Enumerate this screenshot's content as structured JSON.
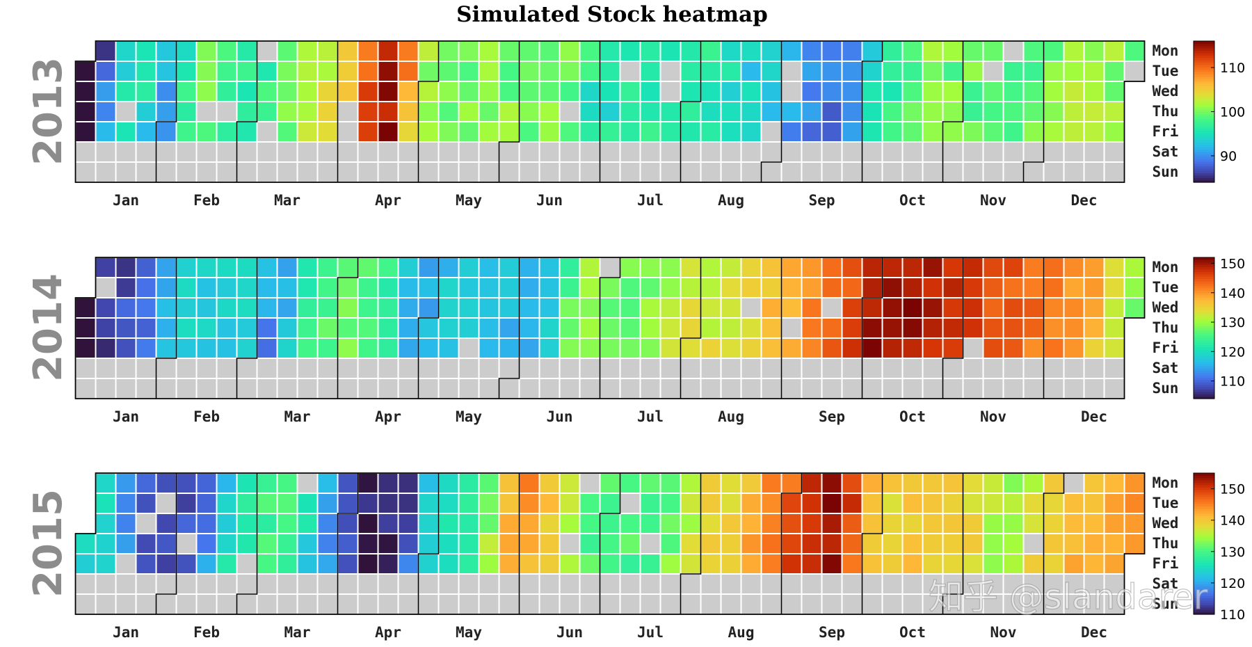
{
  "title": "Simulated Stock heatmap",
  "watermark": "知乎 @slandarer",
  "chart_data": {
    "type": "heatmap",
    "subtype": "calendar",
    "title": "Simulated Stock heatmap",
    "weekdays": [
      "Mon",
      "Tue",
      "Wed",
      "Thu",
      "Fri",
      "Sat",
      "Sun"
    ],
    "months": [
      "Jan",
      "Feb",
      "Mar",
      "Apr",
      "May",
      "Jun",
      "Jul",
      "Aug",
      "Sep",
      "Oct",
      "Nov",
      "Dec"
    ],
    "missing_color": "#cccccc",
    "colormap": "turbo",
    "weekends_missing": true,
    "panels": [
      {
        "year": "2013",
        "clim": [
          84,
          116
        ],
        "colorbar_ticks": [
          90,
          100,
          110
        ],
        "anchors": [
          [
            1,
            80
          ],
          [
            6,
            85
          ],
          [
            10,
            91
          ],
          [
            20,
            98
          ],
          [
            30,
            90
          ],
          [
            40,
            100
          ],
          [
            50,
            98
          ],
          [
            60,
            96
          ],
          [
            75,
            100
          ],
          [
            88,
            103
          ],
          [
            98,
            110
          ],
          [
            105,
            113
          ],
          [
            110,
            115
          ],
          [
            117,
            101
          ],
          [
            130,
            100
          ],
          [
            150,
            100
          ],
          [
            165,
            100
          ],
          [
            180,
            95
          ],
          [
            200,
            96
          ],
          [
            213,
            97
          ],
          [
            235,
            93
          ],
          [
            250,
            90
          ],
          [
            265,
            88
          ],
          [
            276,
            95
          ],
          [
            292,
            100
          ],
          [
            300,
            100
          ],
          [
            320,
            98
          ],
          [
            335,
            100
          ],
          [
            349,
            102
          ],
          [
            365,
            100
          ]
        ]
      },
      {
        "year": "2014",
        "clim": [
          104,
          152
        ],
        "colorbar_ticks": [
          110,
          120,
          130,
          140,
          150
        ],
        "anchors": [
          [
            1,
            98
          ],
          [
            5,
            106
          ],
          [
            14,
            108
          ],
          [
            25,
            112
          ],
          [
            32,
            118
          ],
          [
            45,
            118
          ],
          [
            60,
            118
          ],
          [
            66,
            112
          ],
          [
            80,
            124
          ],
          [
            95,
            128
          ],
          [
            108,
            122
          ],
          [
            115,
            114
          ],
          [
            128,
            118
          ],
          [
            145,
            117
          ],
          [
            160,
            115
          ],
          [
            172,
            130
          ],
          [
            190,
            127
          ],
          [
            210,
            133
          ],
          [
            230,
            133
          ],
          [
            240,
            138
          ],
          [
            260,
            142
          ],
          [
            275,
            150
          ],
          [
            290,
            150
          ],
          [
            300,
            148
          ],
          [
            315,
            145
          ],
          [
            335,
            142
          ],
          [
            350,
            138
          ],
          [
            365,
            129
          ]
        ]
      },
      {
        "year": "2015",
        "clim": [
          110,
          155
        ],
        "colorbar_ticks": [
          110,
          120,
          130,
          140,
          150
        ],
        "anchors": [
          [
            1,
            125
          ],
          [
            9,
            123
          ],
          [
            20,
            114
          ],
          [
            32,
            113
          ],
          [
            42,
            118
          ],
          [
            55,
            128
          ],
          [
            68,
            130
          ],
          [
            80,
            123
          ],
          [
            90,
            115
          ],
          [
            100,
            110
          ],
          [
            110,
            112
          ],
          [
            120,
            125
          ],
          [
            135,
            128
          ],
          [
            150,
            145
          ],
          [
            160,
            140
          ],
          [
            175,
            130
          ],
          [
            190,
            130
          ],
          [
            200,
            130
          ],
          [
            214,
            138
          ],
          [
            225,
            140
          ],
          [
            240,
            146
          ],
          [
            250,
            151
          ],
          [
            258,
            155
          ],
          [
            265,
            150
          ],
          [
            275,
            139
          ],
          [
            290,
            140
          ],
          [
            305,
            140
          ],
          [
            320,
            134
          ],
          [
            335,
            140
          ],
          [
            350,
            142
          ],
          [
            365,
            143
          ]
        ]
      }
    ]
  }
}
